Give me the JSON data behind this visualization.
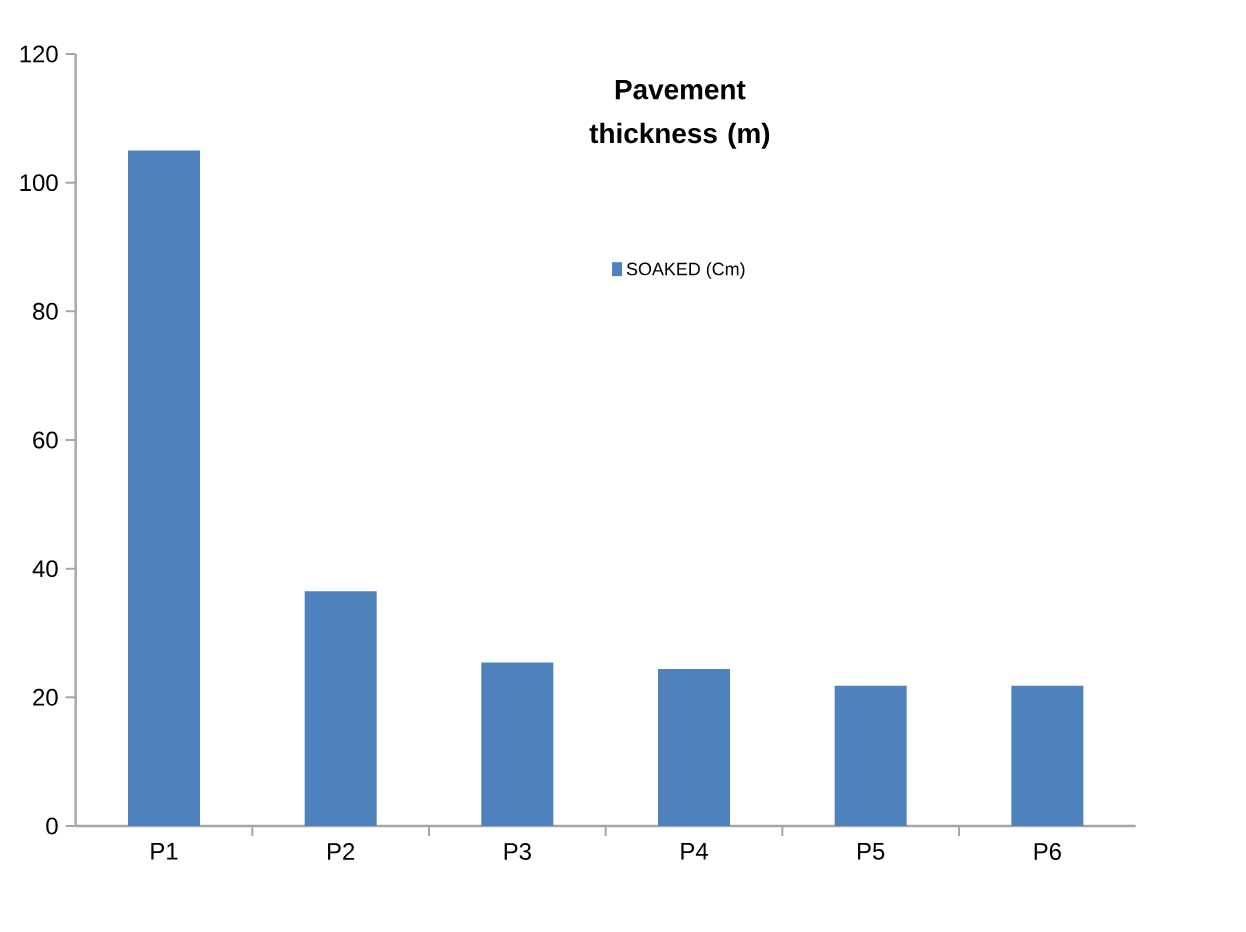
{
  "chart_data": {
    "type": "bar",
    "title": "Pavement thickness (m)",
    "categories": [
      "P1",
      "P2",
      "P3",
      "P4",
      "P5",
      "P6"
    ],
    "series": [
      {
        "name": "SOAKED (Cm)",
        "color": "#4f81bd",
        "values": [
          105,
          36.5,
          25.4,
          24.4,
          21.8,
          21.8
        ]
      }
    ],
    "ylim": [
      0,
      120
    ],
    "yticks": [
      0,
      20,
      40,
      60,
      80,
      100,
      120
    ],
    "grid": false,
    "legend": "top"
  }
}
